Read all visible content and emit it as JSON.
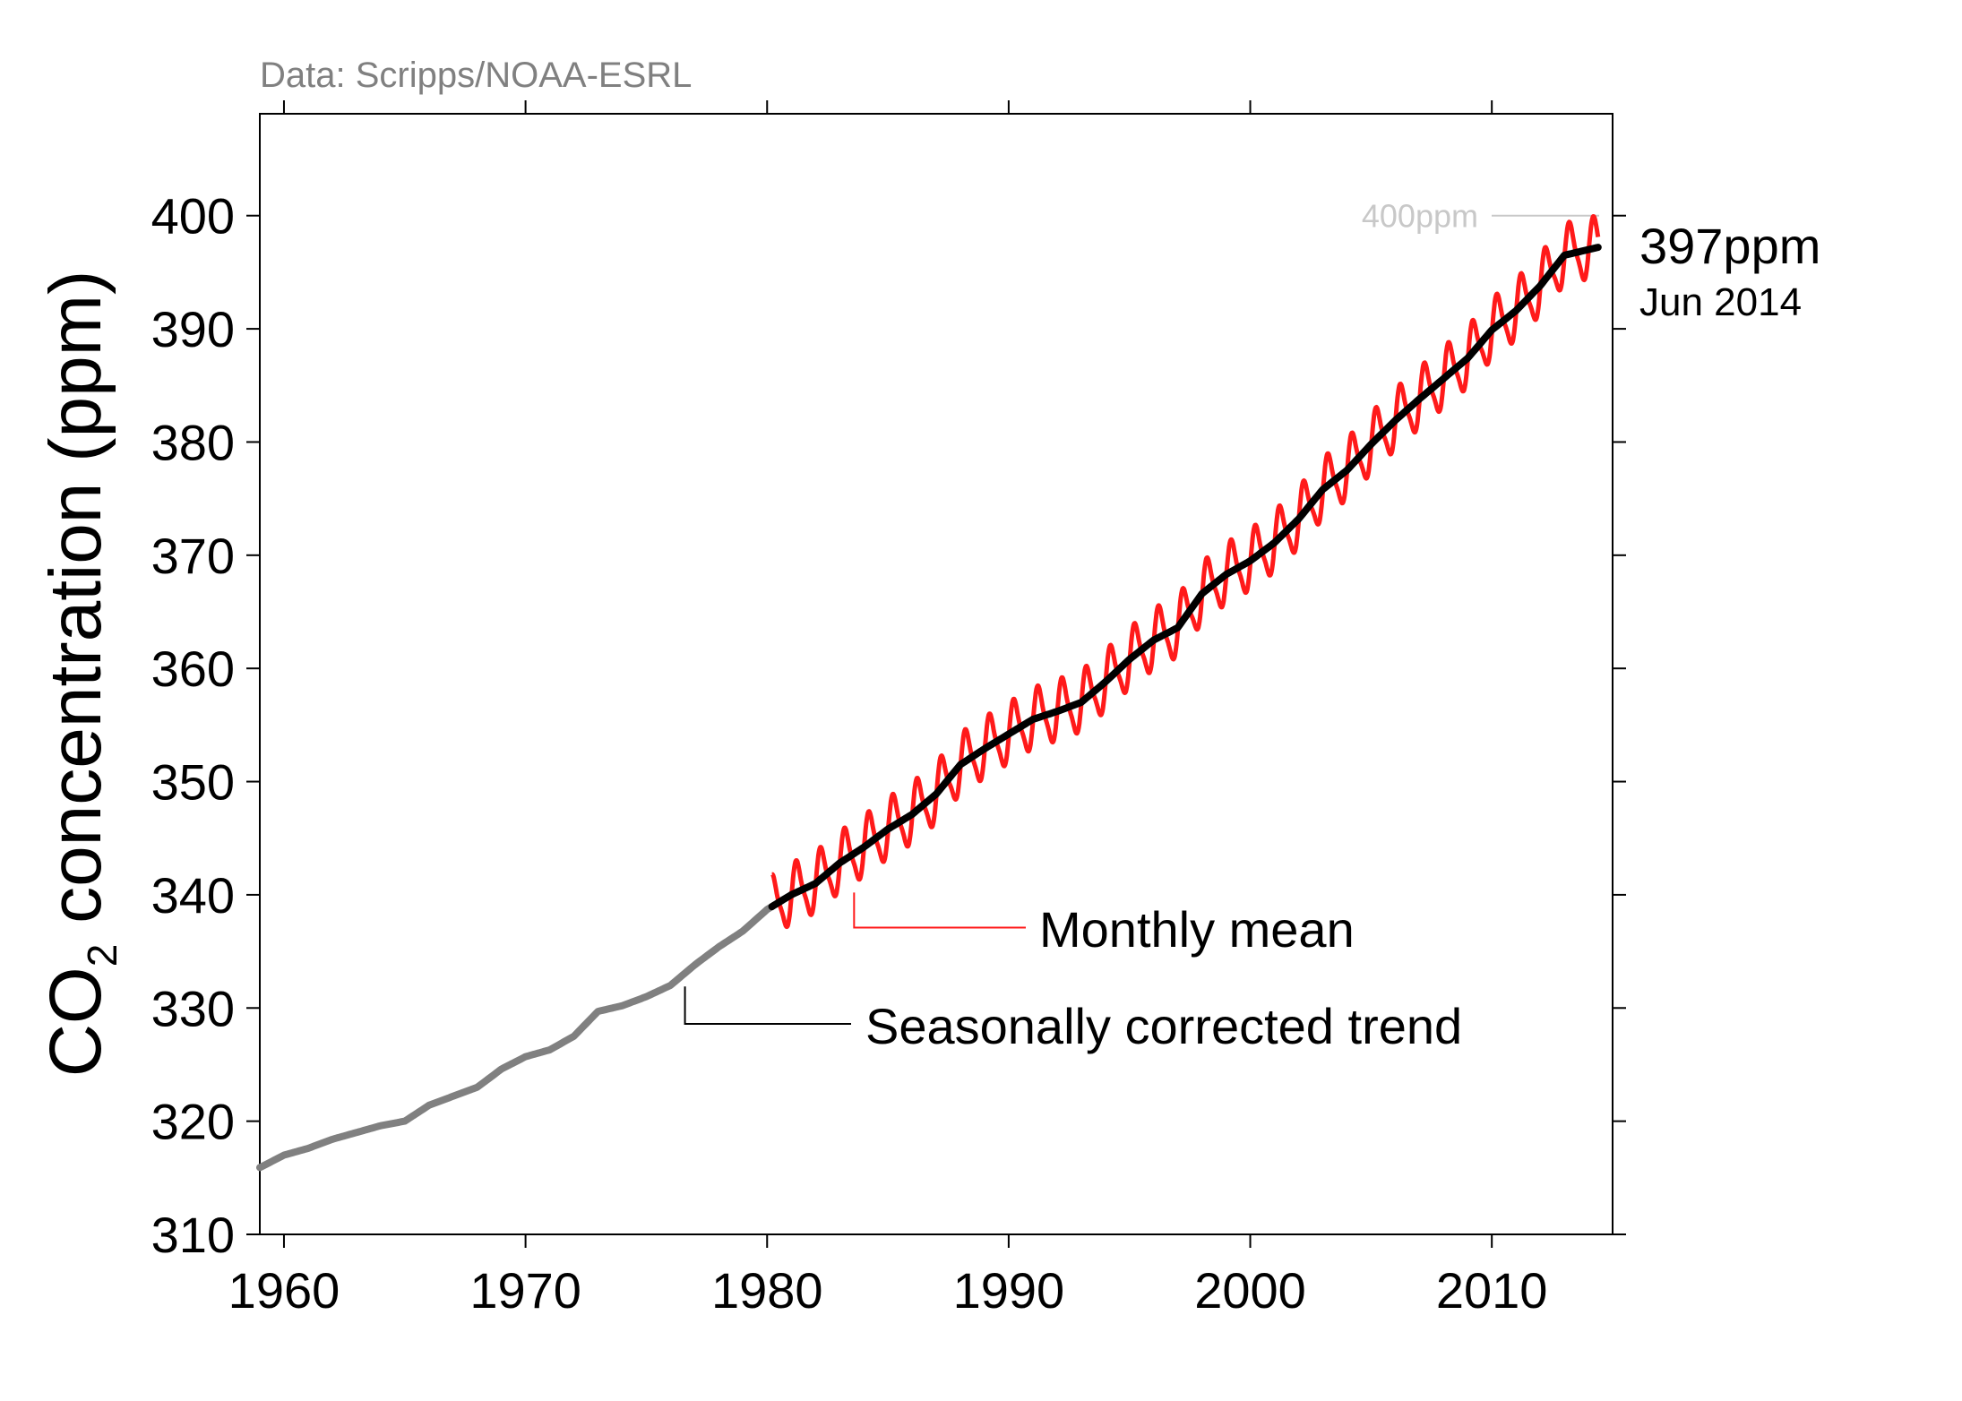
{
  "chart_data": {
    "type": "line",
    "source": "Data: Scripps/NOAA-ESRL",
    "ylabel_main": "CO",
    "ylabel_sub": "2",
    "ylabel_rest": " concentration (ppm)",
    "xlim": [
      1959,
      2015
    ],
    "ylim": [
      310,
      409
    ],
    "xticks": [
      1960,
      1970,
      1980,
      1990,
      2000,
      2010
    ],
    "yticks": [
      310,
      320,
      330,
      340,
      350,
      360,
      370,
      380,
      390,
      400
    ],
    "reference_line": {
      "label": "400ppm",
      "value": 400
    },
    "latest": {
      "value_label": "397ppm",
      "date_label": "Jun 2014"
    },
    "annotations": {
      "monthly_mean": "Monthly mean",
      "trend": "Seasonally corrected trend"
    },
    "colors": {
      "early_trend": "#808080",
      "trend": "#000000",
      "monthly_mean": "#ff1a1a",
      "reference": "#c8c8c8",
      "source_text": "#808080"
    },
    "series": [
      {
        "name": "Seasonally corrected trend",
        "x": [
          1959,
          1960,
          1961,
          1962,
          1963,
          1964,
          1965,
          1966,
          1967,
          1968,
          1969,
          1970,
          1971,
          1972,
          1973,
          1974,
          1975,
          1976,
          1977,
          1978,
          1979,
          1980,
          1981,
          1982,
          1983,
          1984,
          1985,
          1986,
          1987,
          1988,
          1989,
          1990,
          1991,
          1992,
          1993,
          1994,
          1995,
          1996,
          1997,
          1998,
          1999,
          2000,
          2001,
          2002,
          2003,
          2004,
          2005,
          2006,
          2007,
          2008,
          2009,
          2010,
          2011,
          2012,
          2013,
          2014.4
        ],
        "y": [
          315.9,
          317.0,
          317.6,
          318.4,
          319.0,
          319.6,
          320.0,
          321.4,
          322.2,
          323.0,
          324.6,
          325.7,
          326.3,
          327.5,
          329.7,
          330.2,
          331.0,
          332.0,
          333.8,
          335.4,
          336.8,
          338.7,
          340.0,
          341.0,
          342.8,
          344.2,
          345.8,
          347.1,
          348.9,
          351.5,
          352.9,
          354.2,
          355.5,
          356.2,
          357.0,
          358.8,
          360.8,
          362.5,
          363.6,
          366.6,
          368.3,
          369.5,
          371.1,
          373.2,
          375.8,
          377.5,
          379.8,
          381.9,
          383.8,
          385.6,
          387.4,
          389.9,
          391.6,
          393.8,
          396.5,
          397.2
        ]
      },
      {
        "name": "Monthly mean",
        "x_start": 1980.2,
        "x_end": 2014.4,
        "seasonal_amplitude": 3.1
      }
    ]
  }
}
